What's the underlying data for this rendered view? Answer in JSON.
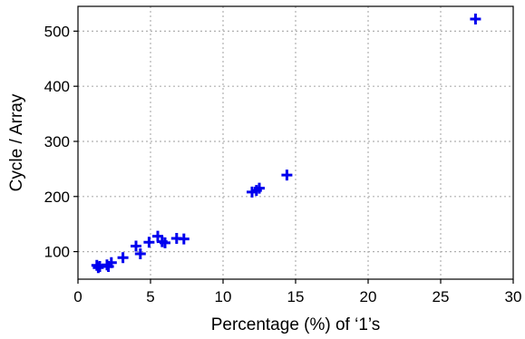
{
  "chart_data": {
    "type": "scatter",
    "xlabel": "Percentage (%) of ‘1’s",
    "ylabel": "Cycle / Array",
    "xlim": [
      0,
      30
    ],
    "ylim": [
      50,
      545
    ],
    "xticks": [
      0,
      5,
      10,
      15,
      20,
      25,
      30
    ],
    "yticks": [
      100,
      200,
      300,
      400,
      500
    ],
    "grid": true,
    "legend": "none",
    "marker": "plus",
    "colors": {
      "marker": "#0000ee",
      "grid": "#b0b0b0",
      "axis": "#000000"
    },
    "series": [
      {
        "points": [
          {
            "x": 1.3,
            "y": 75
          },
          {
            "x": 1.4,
            "y": 71
          },
          {
            "x": 1.5,
            "y": 73
          },
          {
            "x": 2.0,
            "y": 76
          },
          {
            "x": 2.1,
            "y": 73
          },
          {
            "x": 2.3,
            "y": 80
          },
          {
            "x": 3.1,
            "y": 89
          },
          {
            "x": 4.0,
            "y": 110
          },
          {
            "x": 4.3,
            "y": 96
          },
          {
            "x": 4.9,
            "y": 117
          },
          {
            "x": 5.5,
            "y": 128
          },
          {
            "x": 5.8,
            "y": 118
          },
          {
            "x": 6.0,
            "y": 116
          },
          {
            "x": 6.8,
            "y": 124
          },
          {
            "x": 7.3,
            "y": 123
          },
          {
            "x": 12.0,
            "y": 208
          },
          {
            "x": 12.3,
            "y": 211
          },
          {
            "x": 12.5,
            "y": 215
          },
          {
            "x": 14.4,
            "y": 239
          },
          {
            "x": 27.4,
            "y": 522
          }
        ]
      }
    ]
  }
}
